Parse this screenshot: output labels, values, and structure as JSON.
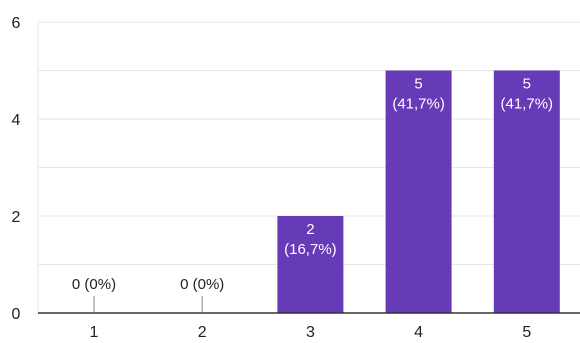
{
  "chart_data": {
    "type": "bar",
    "categories": [
      "1",
      "2",
      "3",
      "4",
      "5"
    ],
    "values": [
      0,
      0,
      2,
      5,
      5
    ],
    "data_labels": [
      [
        "0 (0%)"
      ],
      [
        "0 (0%)"
      ],
      [
        "2",
        "(16,7%)"
      ],
      [
        "5",
        "(41,7%)"
      ],
      [
        "5",
        "(41,7%)"
      ]
    ],
    "ylim": [
      0,
      6
    ],
    "yticks": [
      0,
      2,
      4,
      6
    ],
    "grid": true,
    "legend": "none",
    "colors": {
      "bar": "#673ab7",
      "grid": "#e6e6e6",
      "baseline": "#333333",
      "label_inside": "#ffffff",
      "label_outside": "#222222"
    }
  }
}
